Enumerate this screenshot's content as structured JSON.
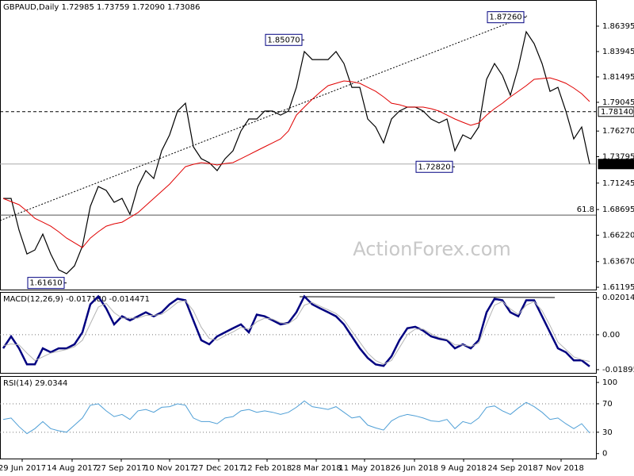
{
  "chart_data": [
    {
      "type": "line",
      "title": "GBPAUD,Daily  1.72985 1.73759 1.72090 1.73086",
      "watermark": "ActionForex.com",
      "xlim": [
        -0.4,
        74.8
      ],
      "xticks": [
        {
          "value": 2.4,
          "label": "29 Jun 2017"
        },
        {
          "value": 8.7,
          "label": "14 Aug 2017"
        },
        {
          "value": 14.9,
          "label": "27 Sep 2017"
        },
        {
          "value": 21,
          "label": "10 Nov 2017"
        },
        {
          "value": 27.2,
          "label": "27 Dec 2017"
        },
        {
          "value": 33.3,
          "label": "12 Feb 2018"
        },
        {
          "value": 39.5,
          "label": "28 Mar 2018"
        },
        {
          "value": 45.6,
          "label": "11 May 2018"
        },
        {
          "value": 51.9,
          "label": "26 Jun 2018"
        },
        {
          "value": 58.1,
          "label": "9 Aug 2018"
        },
        {
          "value": 64.3,
          "label": "24 Sep 2018"
        },
        {
          "value": 70.4,
          "label": "7 Nov 2018"
        }
      ],
      "ylim": [
        1.6097,
        1.8892
      ],
      "yticks": [
        1.86395,
        1.83945,
        1.81495,
        1.79045,
        {
          "value": 1.7627,
          "label": "1.76270"
        },
        1.73795,
        1.71245,
        1.68695,
        {
          "value": 1.6622,
          "label": "1.66220"
        },
        {
          "value": 1.6367,
          "label": "1.63670"
        },
        1.61195
      ],
      "series": [
        {
          "color": "#000000",
          "values": [
            1.6977,
            1.6977,
            1.6671,
            1.6441,
            1.6479,
            1.6632,
            1.6441,
            1.6288,
            1.625,
            1.6326,
            1.6517,
            1.69,
            1.7092,
            1.7054,
            1.6939,
            1.6977,
            1.6824,
            1.7092,
            1.7245,
            1.7169,
            1.7437,
            1.759,
            1.782,
            1.7896,
            1.7475,
            1.736,
            1.7322,
            1.7245,
            1.736,
            1.7437,
            1.7628,
            1.7743,
            1.7743,
            1.782,
            1.782,
            1.7781,
            1.782,
            1.8049,
            1.8394,
            1.8317,
            1.8317,
            1.8317,
            1.8394,
            1.8279,
            1.8049,
            1.8049,
            1.7743,
            1.7666,
            1.7513,
            1.7743,
            1.782,
            1.7858,
            1.7858,
            1.782,
            1.7743,
            1.7705,
            1.7743,
            1.7437,
            1.759,
            1.7551,
            1.7666,
            1.8126,
            1.8279,
            1.8164,
            1.7973,
            1.8241,
            1.8586,
            1.8471,
            1.8279,
            1.8011,
            1.8049,
            1.782,
            1.7551,
            1.7666,
            1.73086
          ]
        },
        {
          "color": "#e00000",
          "values": [
            1.6977,
            1.6946,
            1.6916,
            1.6854,
            1.6785,
            1.6747,
            1.6709,
            1.6655,
            1.6594,
            1.6548,
            1.6502,
            1.6594,
            1.6655,
            1.6709,
            1.6732,
            1.6747,
            1.6793,
            1.6839,
            1.6908,
            1.6977,
            1.7046,
            1.7115,
            1.7199,
            1.7283,
            1.7306,
            1.7322,
            1.7314,
            1.7299,
            1.7314,
            1.7322,
            1.736,
            1.7398,
            1.7437,
            1.7475,
            1.7513,
            1.7551,
            1.7628,
            1.7781,
            1.7858,
            1.7934,
            1.8003,
            1.8065,
            1.8088,
            1.8111,
            1.8103,
            1.8088,
            1.8049,
            1.8011,
            1.7957,
            1.7896,
            1.7881,
            1.7858,
            1.7858,
            1.7858,
            1.7843,
            1.782,
            1.7781,
            1.7743,
            1.7712,
            1.7682,
            1.7705,
            1.7781,
            1.7843,
            1.7896,
            1.7957,
            1.8011,
            1.8065,
            1.8126,
            1.8134,
            1.8141,
            1.8118,
            1.8088,
            1.8042,
            1.7988,
            1.7912
          ]
        }
      ],
      "trendline": {
        "x": [
          -0.4,
          66.1
        ],
        "values": [
          1.6763,
          1.8739
        ]
      },
      "levels": [
        {
          "value": 1.7814,
          "label": "1.78140",
          "style": "dashed"
        },
        {
          "value": 1.73086,
          "label": "1.73086",
          "style": "current"
        },
        {
          "value": 1.6816,
          "label": "61.8",
          "style": "fib"
        }
      ],
      "annotations": [
        {
          "index": 38,
          "value": 1.8507,
          "label": "1.85070"
        },
        {
          "index": 66,
          "value": 1.8726,
          "label": "1.87260"
        },
        {
          "index": 57,
          "value": 1.7282,
          "label": "1.72820"
        },
        {
          "index": 8,
          "value": 1.6161,
          "label": "1.61610"
        }
      ]
    },
    {
      "type": "line",
      "title": "MACD(12,26,9) -0.017180 -0.014471",
      "ylim": [
        -0.0207,
        0.0232
      ],
      "yticks": [
        0.020145,
        {
          "value": 0,
          "label": "0.00"
        },
        -0.018958
      ],
      "levels": [
        {
          "value": 0
        }
      ],
      "series": [
        {
          "color": "#000080",
          "values": [
            -0.0074,
            -0.0009,
            -0.0074,
            -0.0161,
            -0.0161,
            -0.0074,
            -0.0095,
            -0.0074,
            -0.0074,
            -0.0052,
            0.0013,
            0.0165,
            0.0208,
            0.0143,
            0.0056,
            0.01,
            0.0078,
            0.01,
            0.0122,
            0.01,
            0.0122,
            0.0165,
            0.0195,
            0.0187,
            0.0078,
            -0.003,
            -0.0052,
            -0.0009,
            0.0013,
            0.0035,
            0.0056,
            0.0013,
            0.0109,
            0.01,
            0.0078,
            0.0056,
            0.0065,
            0.0122,
            0.0208,
            0.0165,
            0.0143,
            0.0122,
            0.01,
            0.0056,
            -0.0009,
            -0.0074,
            -0.0126,
            -0.0161,
            -0.0169,
            -0.0117,
            -0.003,
            0.0035,
            0.0043,
            0.0022,
            -0.0009,
            -0.0022,
            -0.003,
            -0.0074,
            -0.0052,
            -0.0074,
            -0.003,
            0.0122,
            0.0195,
            0.0187,
            0.0122,
            0.01,
            0.0187,
            0.0187,
            0.01,
            0.0013,
            -0.0074,
            -0.0095,
            -0.0139,
            -0.0139,
            -0.0172
          ]
        },
        {
          "color": "#b4b4b4",
          "values": [
            -0.006,
            -0.005,
            -0.0055,
            -0.01,
            -0.014,
            -0.012,
            -0.01,
            -0.009,
            -0.008,
            -0.0065,
            -0.003,
            0.006,
            0.015,
            0.017,
            0.012,
            0.009,
            0.009,
            0.009,
            0.0105,
            0.0105,
            0.011,
            0.014,
            0.0175,
            0.0185,
            0.013,
            0.004,
            -0.002,
            -0.003,
            -0.0005,
            0.0015,
            0.004,
            0.003,
            0.007,
            0.009,
            0.0085,
            0.0065,
            0.006,
            0.009,
            0.016,
            0.0175,
            0.0155,
            0.0135,
            0.0115,
            0.008,
            0.002,
            -0.004,
            -0.01,
            -0.014,
            -0.016,
            -0.014,
            -0.007,
            0.0,
            0.003,
            0.003,
            0.0005,
            -0.0015,
            -0.0025,
            -0.0055,
            -0.0055,
            -0.0065,
            -0.0045,
            0.006,
            0.016,
            0.018,
            0.014,
            0.011,
            0.016,
            0.018,
            0.013,
            0.005,
            -0.004,
            -0.008,
            -0.012,
            -0.0135,
            -0.0145
          ]
        }
      ]
    },
    {
      "type": "line",
      "title": "RSI(14) 29.0344",
      "ylim": [
        -7,
        109
      ],
      "yticks": [
        100,
        70,
        30,
        0
      ],
      "levels": [
        {
          "value": 70
        },
        {
          "value": 30
        }
      ],
      "series": [
        {
          "color": "#4f9fd6",
          "values": [
            48,
            50,
            38,
            28,
            35,
            45,
            35,
            32,
            30,
            40,
            50,
            68,
            70,
            60,
            52,
            55,
            48,
            60,
            62,
            58,
            65,
            66,
            70,
            68,
            50,
            45,
            45,
            42,
            50,
            52,
            60,
            62,
            58,
            60,
            58,
            55,
            58,
            65,
            74,
            66,
            64,
            62,
            66,
            58,
            50,
            52,
            40,
            36,
            33,
            46,
            52,
            55,
            53,
            50,
            46,
            45,
            48,
            35,
            45,
            42,
            50,
            65,
            67,
            60,
            55,
            64,
            72,
            66,
            58,
            48,
            50,
            42,
            35,
            42,
            29.0344
          ]
        }
      ]
    }
  ]
}
